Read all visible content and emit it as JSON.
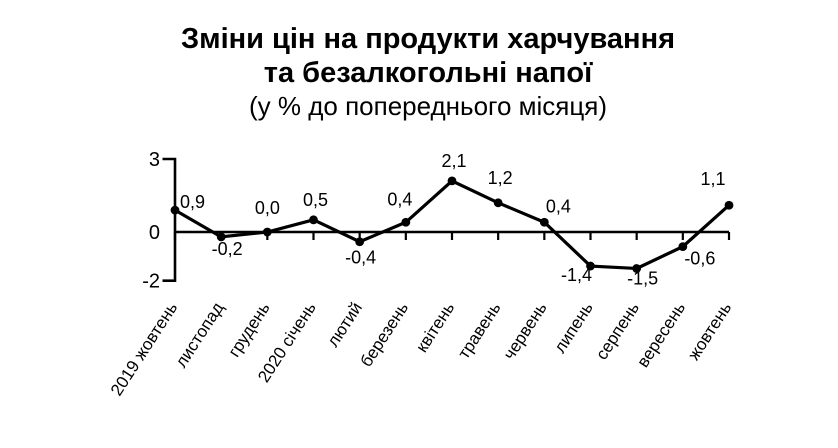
{
  "title": {
    "line1": "Зміни цін на продукти харчування",
    "line2": "та безалкогольні напої",
    "subtitle": "(у % до попереднього місяця)"
  },
  "colors": {
    "line": "#000000",
    "marker": "#000000",
    "axis": "#000000",
    "text": "#000000",
    "background": "#ffffff"
  },
  "chart_data": {
    "type": "line",
    "title": "Зміни цін на продукти харчування та безалкогольні напої",
    "subtitle": "(у % до попереднього місяця)",
    "categories": [
      "2019 жовтень",
      "листопад",
      "грудень",
      "2020 січень",
      "лютий",
      "березень",
      "квітень",
      "травень",
      "червень",
      "липень",
      "серпень",
      "вересень",
      "жовтень"
    ],
    "values": [
      0.9,
      -0.2,
      0.0,
      0.5,
      -0.4,
      0.4,
      2.1,
      1.2,
      0.4,
      -1.4,
      -1.5,
      -0.6,
      1.1
    ],
    "value_labels": [
      "0,9",
      "-0,2",
      "0,0",
      "0,5",
      "-0,4",
      "0,4",
      "2,1",
      "1,2",
      "0,4",
      "-1,4",
      "-1,5",
      "-0,6",
      "1,1"
    ],
    "ylabel": "",
    "xlabel": "",
    "ylim": [
      -2,
      3
    ],
    "y_ticks": [
      3,
      0,
      -2
    ],
    "y_tick_labels": [
      "3",
      "0",
      "-2"
    ],
    "grid": false,
    "legend": false,
    "marker": "circle",
    "line_color": "#000000"
  }
}
